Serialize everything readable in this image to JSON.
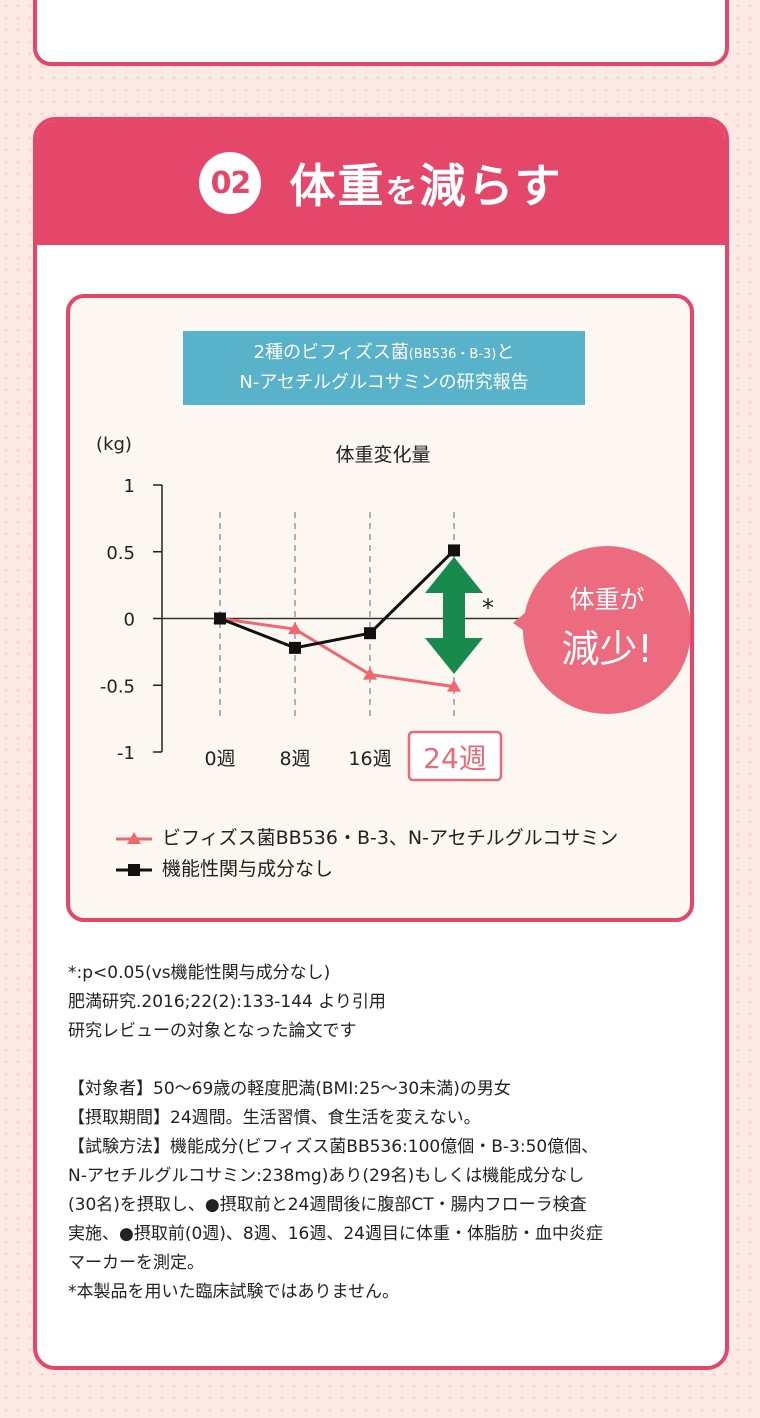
{
  "section": {
    "number": "02",
    "title_main1": "体重",
    "title_particle": "を",
    "title_main2": "減らす"
  },
  "study_banner": {
    "line1_pre": "2種のビフィズス菌",
    "line1_small": "(BB536・B-3)",
    "line1_post": "と",
    "line2": "N-アセチルグルコサミンの研究報告"
  },
  "callout": {
    "line1": "体重が",
    "line2": "減少!"
  },
  "significance_mark": "*",
  "chart_data": {
    "type": "line",
    "title": "体重変化量",
    "ylabel": "(kg)",
    "categories": [
      "0週",
      "8週",
      "16週",
      "24週"
    ],
    "y_ticks": [
      "1",
      "0.5",
      "0",
      "-0.5",
      "-1"
    ],
    "ylim": [
      -1,
      1
    ],
    "series": [
      {
        "name": "ビフィズス菌BB536・B-3、N-アセチルグルコサミン",
        "values": [
          0,
          -0.08,
          -0.42,
          -0.51
        ],
        "color": "#f26670",
        "marker": "triangle"
      },
      {
        "name": "機能性関与成分なし",
        "values": [
          0,
          -0.22,
          -0.11,
          0.51
        ],
        "color": "#111111",
        "marker": "square"
      }
    ],
    "highlight_category": "24週",
    "arrow_color": "#188a4e",
    "grid": "vertical dashed"
  },
  "notes": [
    "*:p<0.05(vs機能性関与成分なし)",
    "肥満研究.2016;22(2):133-144 より引用",
    "研究レビューの対象となった論文です",
    "",
    "【対象者】50〜69歳の軽度肥満(BMI:25〜30未満)の男女",
    "【摂取期間】24週間。生活習慣、食生活を変えない。",
    "【試験方法】機能成分(ビフィズス菌BB536:100億個・B-3:50億個、",
    "N-アセチルグルコサミン:238mg)あり(29名)もしくは機能成分なし",
    "(30名)を摂取し、●摂取前と24週間後に腹部CT・腸内フローラ検査",
    "実施、●摂取前(0週)、8週、16週、24週目に体重・体脂肪・血中炎症",
    "マーカーを測定。",
    "*本製品を用いた臨床試験ではありません。"
  ],
  "colors": {
    "accent": "#e5476a",
    "banner": "#58b2c9",
    "panel": "#fcf8f1",
    "callout": "#ed6b7e"
  }
}
